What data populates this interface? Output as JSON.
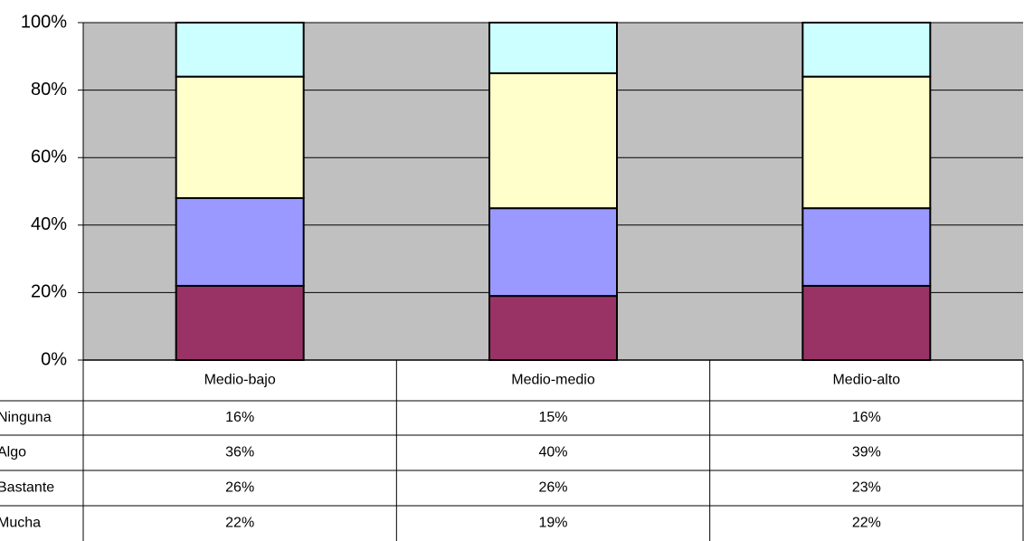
{
  "chart_data": {
    "type": "stacked_bar",
    "categories": [
      "Medio-bajo",
      "Medio-medio",
      "Medio-alto"
    ],
    "series": [
      {
        "name": "Mucha",
        "color": "#993366",
        "values": [
          22,
          19,
          22
        ],
        "value_labels": [
          "22%",
          "19%",
          "22%"
        ]
      },
      {
        "name": "Bastante",
        "color": "#9999ff",
        "values": [
          26,
          26,
          23
        ],
        "value_labels": [
          "26%",
          "26%",
          "23%"
        ]
      },
      {
        "name": "Algo",
        "color": "#ffffcc",
        "values": [
          36,
          40,
          39
        ],
        "value_labels": [
          "36%",
          "40%",
          "39%"
        ]
      },
      {
        "name": "Ninguna",
        "color": "#ccffff",
        "values": [
          16,
          15,
          16
        ],
        "value_labels": [
          "16%",
          "15%",
          "16%"
        ]
      }
    ],
    "ylim": [
      0,
      100
    ],
    "yticks": [
      {
        "value": 0,
        "label": "0%"
      },
      {
        "value": 20,
        "label": "20%"
      },
      {
        "value": 40,
        "label": "40%"
      },
      {
        "value": 60,
        "label": "60%"
      },
      {
        "value": 80,
        "label": "80%"
      },
      {
        "value": 100,
        "label": "100%"
      }
    ],
    "grid": true,
    "plot_background": "#c0c0c0"
  }
}
